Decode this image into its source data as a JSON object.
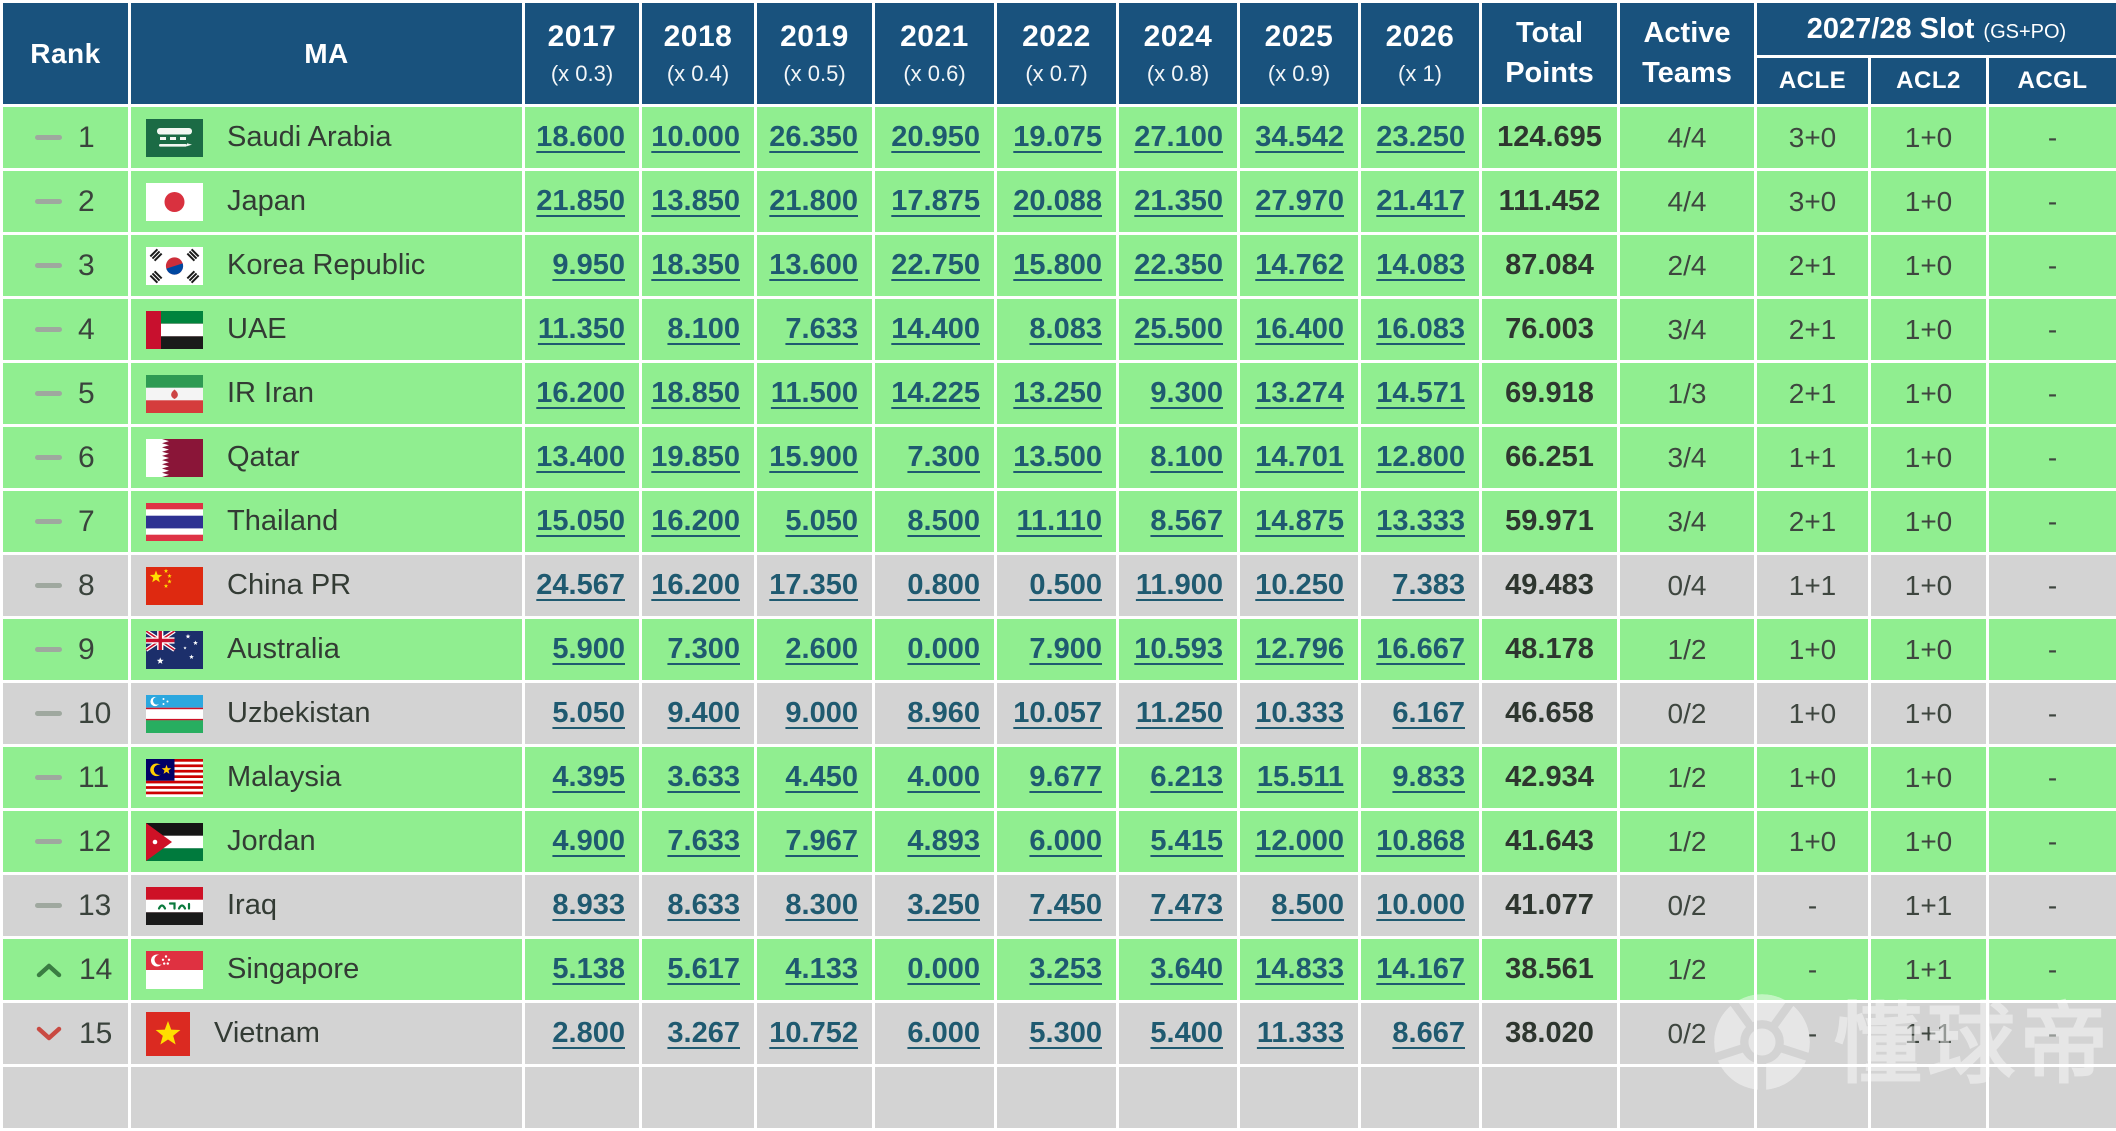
{
  "header": {
    "rank": "Rank",
    "ma": "MA",
    "years": [
      {
        "label": "2017",
        "mult": "(x 0.3)"
      },
      {
        "label": "2018",
        "mult": "(x 0.4)"
      },
      {
        "label": "2019",
        "mult": "(x 0.5)"
      },
      {
        "label": "2021",
        "mult": "(x 0.6)"
      },
      {
        "label": "2022",
        "mult": "(x 0.7)"
      },
      {
        "label": "2024",
        "mult": "(x 0.8)"
      },
      {
        "label": "2025",
        "mult": "(x 0.9)"
      },
      {
        "label": "2026",
        "mult": "(x 1)"
      }
    ],
    "total_line1": "Total",
    "total_line2": "Points",
    "active_line1": "Active",
    "active_line2": "Teams",
    "slot_title": "2027/28 Slot",
    "slot_note": "(GS+PO)",
    "slot_cols": [
      "ACLE",
      "ACL2",
      "ACGL"
    ]
  },
  "rows": [
    {
      "movement": "same",
      "rank": "1",
      "country": "Saudi Arabia",
      "flag": "saudi-arabia",
      "row_color": "green",
      "scores": [
        "18.600",
        "10.000",
        "26.350",
        "20.950",
        "19.075",
        "27.100",
        "34.542",
        "23.250"
      ],
      "total": "124.695",
      "active": "4/4",
      "acle": "3+0",
      "acl2": "1+0",
      "acgl": "-"
    },
    {
      "movement": "same",
      "rank": "2",
      "country": "Japan",
      "flag": "japan",
      "row_color": "green",
      "scores": [
        "21.850",
        "13.850",
        "21.800",
        "17.875",
        "20.088",
        "21.350",
        "27.970",
        "21.417"
      ],
      "total": "111.452",
      "active": "4/4",
      "acle": "3+0",
      "acl2": "1+0",
      "acgl": "-"
    },
    {
      "movement": "same",
      "rank": "3",
      "country": "Korea Republic",
      "flag": "korea-republic",
      "row_color": "green",
      "scores": [
        "9.950",
        "18.350",
        "13.600",
        "22.750",
        "15.800",
        "22.350",
        "14.762",
        "14.083"
      ],
      "total": "87.084",
      "active": "2/4",
      "acle": "2+1",
      "acl2": "1+0",
      "acgl": "-"
    },
    {
      "movement": "same",
      "rank": "4",
      "country": "UAE",
      "flag": "uae",
      "row_color": "green",
      "scores": [
        "11.350",
        "8.100",
        "7.633",
        "14.400",
        "8.083",
        "25.500",
        "16.400",
        "16.083"
      ],
      "total": "76.003",
      "active": "3/4",
      "acle": "2+1",
      "acl2": "1+0",
      "acgl": "-"
    },
    {
      "movement": "same",
      "rank": "5",
      "country": "IR Iran",
      "flag": "ir-iran",
      "row_color": "green",
      "scores": [
        "16.200",
        "18.850",
        "11.500",
        "14.225",
        "13.250",
        "9.300",
        "13.274",
        "14.571"
      ],
      "total": "69.918",
      "active": "1/3",
      "acle": "2+1",
      "acl2": "1+0",
      "acgl": "-"
    },
    {
      "movement": "same",
      "rank": "6",
      "country": "Qatar",
      "flag": "qatar",
      "row_color": "green",
      "scores": [
        "13.400",
        "19.850",
        "15.900",
        "7.300",
        "13.500",
        "8.100",
        "14.701",
        "12.800"
      ],
      "total": "66.251",
      "active": "3/4",
      "acle": "1+1",
      "acl2": "1+0",
      "acgl": "-"
    },
    {
      "movement": "same",
      "rank": "7",
      "country": "Thailand",
      "flag": "thailand",
      "row_color": "green",
      "scores": [
        "15.050",
        "16.200",
        "5.050",
        "8.500",
        "11.110",
        "8.567",
        "14.875",
        "13.333"
      ],
      "total": "59.971",
      "active": "3/4",
      "acle": "2+1",
      "acl2": "1+0",
      "acgl": "-"
    },
    {
      "movement": "same",
      "rank": "8",
      "country": "China PR",
      "flag": "china-pr",
      "row_color": "gray",
      "scores": [
        "24.567",
        "16.200",
        "17.350",
        "0.800",
        "0.500",
        "11.900",
        "10.250",
        "7.383"
      ],
      "total": "49.483",
      "active": "0/4",
      "acle": "1+1",
      "acl2": "1+0",
      "acgl": "-"
    },
    {
      "movement": "same",
      "rank": "9",
      "country": "Australia",
      "flag": "australia",
      "row_color": "green",
      "scores": [
        "5.900",
        "7.300",
        "2.600",
        "0.000",
        "7.900",
        "10.593",
        "12.796",
        "16.667"
      ],
      "total": "48.178",
      "active": "1/2",
      "acle": "1+0",
      "acl2": "1+0",
      "acgl": "-"
    },
    {
      "movement": "same",
      "rank": "10",
      "country": "Uzbekistan",
      "flag": "uzbekistan",
      "row_color": "gray",
      "scores": [
        "5.050",
        "9.400",
        "9.000",
        "8.960",
        "10.057",
        "11.250",
        "10.333",
        "6.167"
      ],
      "total": "46.658",
      "active": "0/2",
      "acle": "1+0",
      "acl2": "1+0",
      "acgl": "-"
    },
    {
      "movement": "same",
      "rank": "11",
      "country": "Malaysia",
      "flag": "malaysia",
      "row_color": "green",
      "scores": [
        "4.395",
        "3.633",
        "4.450",
        "4.000",
        "9.677",
        "6.213",
        "15.511",
        "9.833"
      ],
      "total": "42.934",
      "active": "1/2",
      "acle": "1+0",
      "acl2": "1+0",
      "acgl": "-"
    },
    {
      "movement": "same",
      "rank": "12",
      "country": "Jordan",
      "flag": "jordan",
      "row_color": "green",
      "scores": [
        "4.900",
        "7.633",
        "7.967",
        "4.893",
        "6.000",
        "5.415",
        "12.000",
        "10.868"
      ],
      "total": "41.643",
      "active": "1/2",
      "acle": "1+0",
      "acl2": "1+0",
      "acgl": "-"
    },
    {
      "movement": "same",
      "rank": "13",
      "country": "Iraq",
      "flag": "iraq",
      "row_color": "gray",
      "scores": [
        "8.933",
        "8.633",
        "8.300",
        "3.250",
        "7.450",
        "7.473",
        "8.500",
        "10.000"
      ],
      "total": "41.077",
      "active": "0/2",
      "acle": "-",
      "acl2": "1+1",
      "acgl": "-"
    },
    {
      "movement": "up",
      "rank": "14",
      "country": "Singapore",
      "flag": "singapore",
      "row_color": "green",
      "scores": [
        "5.138",
        "5.617",
        "4.133",
        "0.000",
        "3.253",
        "3.640",
        "14.833",
        "14.167"
      ],
      "total": "38.561",
      "active": "1/2",
      "acle": "-",
      "acl2": "1+1",
      "acgl": "-"
    },
    {
      "movement": "down",
      "rank": "15",
      "country": "Vietnam",
      "flag": "vietnam",
      "row_color": "gray",
      "scores": [
        "2.800",
        "3.267",
        "10.752",
        "6.000",
        "5.300",
        "5.400",
        "11.333",
        "8.667"
      ],
      "total": "38.020",
      "active": "0/2",
      "acle": "-",
      "acl2": "1+1",
      "acgl": "-"
    }
  ],
  "partial_row": {
    "row_color": "gray"
  },
  "watermark": {
    "text": "懂球帝",
    "icon": "soccer-ball-icon"
  },
  "colors": {
    "header_bg": "#19527D",
    "row_green": "#90EE90",
    "row_gray": "#D3D3D3",
    "link": "#1F5A70",
    "rank_up": "#3A7D42",
    "rank_down": "#C94A42",
    "rank_same": "#9FA89F"
  }
}
